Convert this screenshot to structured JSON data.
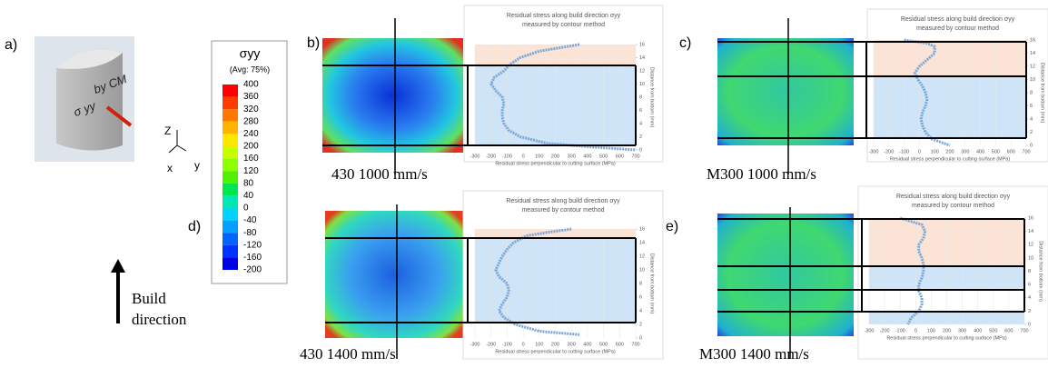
{
  "panel_labels": [
    "a)",
    "b)",
    "c)",
    "d)",
    "e)"
  ],
  "captions": [
    "430 1000 mm/s",
    "M300 1000 mm/s",
    "430 1400 mm/s",
    "M300 1400 mm/s"
  ],
  "build_direction": [
    "Build",
    "direction"
  ],
  "sample_labels": [
    "σ yy",
    "by CM"
  ],
  "axes_labels": [
    "Z",
    "x",
    "y"
  ],
  "colorbar": {
    "title": "σyy",
    "subtitle": "(Avg: 75%)",
    "ticks": [
      400,
      360,
      320,
      280,
      240,
      200,
      160,
      120,
      80,
      40,
      0,
      -40,
      -80,
      -120,
      -160,
      -200
    ],
    "colors": [
      "#ff0000",
      "#ff3c00",
      "#ff7800",
      "#ffb400",
      "#ffe600",
      "#c8ff00",
      "#8cff00",
      "#50f000",
      "#00e650",
      "#00e6b4",
      "#00d2ff",
      "#00a0ff",
      "#0064ff",
      "#0032ff",
      "#0000e6"
    ]
  },
  "chart_data": [
    {
      "type": "line",
      "title": "Residual stress along build direction σyy",
      "subtitle": "measured by contour method",
      "x_label": "Residual stress perpendicular to cutting surface (MPa)",
      "y_label": "Distance from bottom (mm)",
      "xlim": [
        -300,
        700
      ],
      "xticks": [
        -300,
        -200,
        -100,
        0,
        100,
        200,
        300,
        400,
        500,
        600,
        700
      ],
      "ylim": [
        0,
        16
      ],
      "yticks": [
        0,
        2,
        4,
        6,
        8,
        10,
        12,
        14,
        16
      ],
      "color": "#7aa6d8",
      "x": [
        350,
        100,
        -20,
        -80,
        -120,
        -180,
        -200,
        -170,
        -130,
        -120,
        -130,
        -130,
        -120,
        -90,
        -20,
        150,
        400,
        700
      ],
      "values": [
        16,
        15,
        14,
        13,
        12,
        11,
        10,
        9,
        8,
        7,
        6,
        5,
        4,
        3,
        2,
        1,
        0.5,
        0
      ]
    },
    {
      "type": "line",
      "title": "Residual stress along build direction σyy",
      "subtitle": "measured by contour method",
      "x_label": "Residual stress perpendicular to cutting surface (MPa)",
      "y_label": "Distance from bottom (mm)",
      "xlim": [
        -300,
        700
      ],
      "xticks": [
        -300,
        -200,
        -100,
        0,
        100,
        200,
        300,
        400,
        500,
        600,
        700
      ],
      "ylim": [
        0,
        16
      ],
      "yticks": [
        0,
        2,
        4,
        6,
        8,
        10,
        12,
        14,
        16
      ],
      "color": "#7aa6d8",
      "x": [
        -100,
        50,
        100,
        100,
        50,
        0,
        -30,
        -10,
        20,
        40,
        50,
        40,
        20,
        10,
        20,
        40,
        80,
        200
      ],
      "values": [
        16,
        15.5,
        15,
        14,
        13,
        12,
        11,
        10,
        9,
        8,
        7,
        6,
        5,
        4,
        3,
        2,
        1,
        0
      ]
    },
    {
      "type": "line",
      "title": "Residual stress along build direction σyy",
      "subtitle": "measured by contour method",
      "x_label": "Residual stress perpendicular to cutting surface (MPa)",
      "y_label": "Distance from bottom (mm)",
      "xlim": [
        -300,
        700
      ],
      "xticks": [
        -300,
        -200,
        -100,
        0,
        100,
        200,
        300,
        400,
        500,
        600,
        700
      ],
      "ylim": [
        0,
        16
      ],
      "yticks": [
        0,
        2,
        4,
        6,
        8,
        10,
        12,
        14,
        16
      ],
      "color": "#7aa6d8",
      "x": [
        300,
        150,
        20,
        -60,
        -100,
        -130,
        -150,
        -170,
        -150,
        -100,
        -90,
        -100,
        -130,
        -150,
        -120,
        -50,
        100,
        350
      ],
      "values": [
        16,
        15.5,
        15,
        14,
        13,
        12,
        11,
        10,
        9,
        8,
        7,
        6,
        5,
        4,
        3,
        2,
        1,
        0.5
      ]
    },
    {
      "type": "line",
      "title": "Residual stress along build direction σyy",
      "subtitle": "measured by contour method",
      "x_label": "Residual stress perpendicular to cutting surface (MPa)",
      "y_label": "Distance from bottom (mm)",
      "xlim": [
        -300,
        700
      ],
      "xticks": [
        -300,
        -200,
        -100,
        0,
        100,
        200,
        300,
        400,
        500,
        600,
        700
      ],
      "ylim": [
        0,
        16
      ],
      "yticks": [
        0,
        2,
        4,
        6,
        8,
        10,
        12,
        14,
        16
      ],
      "color": "#7aa6d8",
      "x": [
        -100,
        40,
        60,
        50,
        20,
        20,
        40,
        50,
        50,
        40,
        20,
        20,
        40,
        40,
        20,
        -30,
        -50
      ],
      "values": [
        16,
        15,
        14,
        13,
        12,
        11,
        10,
        9,
        8,
        7,
        6,
        5,
        4,
        3,
        2,
        1,
        0
      ]
    }
  ]
}
